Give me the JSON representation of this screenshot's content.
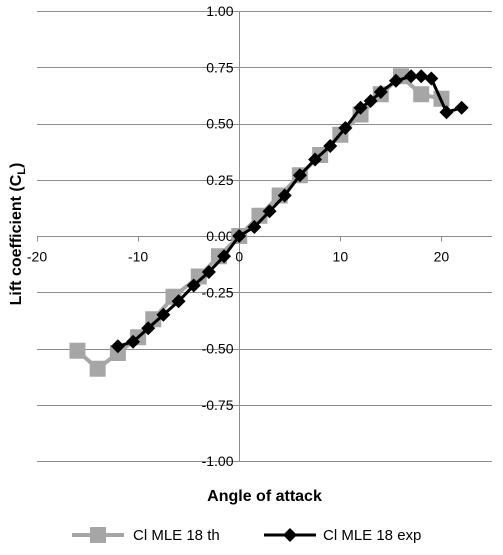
{
  "chart_data": {
    "type": "line",
    "xlabel": "Angle of attack",
    "ylabel": "Lift coefficient (C",
    "ylabel_subscript": "L",
    "ylabel_close": ")",
    "xlim": [
      -20,
      25
    ],
    "ylim": [
      -1.0,
      1.0
    ],
    "x_ticks": [
      -20,
      -10,
      0,
      10,
      20
    ],
    "y_ticks": [
      1.0,
      0.75,
      0.5,
      0.25,
      0.0,
      -0.25,
      -0.5,
      -0.75,
      -1.0
    ],
    "x_tick_labels": [
      "-20",
      "-10",
      "0",
      "10",
      "20"
    ],
    "y_tick_labels": [
      "1.00",
      "0.75",
      "0.50",
      "0.25",
      "0.00",
      "-0.25",
      "-0.50",
      "-0.75",
      "-1.00"
    ],
    "grid": "horizontal",
    "legend_position": "bottom",
    "series": [
      {
        "name": "Cl MLE 18 th",
        "color": "#a6a6a6",
        "marker": "square",
        "x": [
          -16,
          -14,
          -12,
          -10,
          -8.5,
          -6.5,
          -4,
          -2,
          0,
          2,
          4,
          6,
          8,
          10,
          12,
          14,
          16,
          18,
          20
        ],
        "y": [
          -0.51,
          -0.59,
          -0.52,
          -0.45,
          -0.37,
          -0.27,
          -0.18,
          -0.09,
          0.0,
          0.09,
          0.18,
          0.27,
          0.36,
          0.45,
          0.54,
          0.63,
          0.71,
          0.63,
          0.61
        ]
      },
      {
        "name": "Cl MLE 18 exp",
        "color": "#000000",
        "marker": "diamond",
        "x": [
          -12,
          -10.5,
          -9,
          -7.5,
          -6,
          -4.5,
          -3,
          -1.5,
          0,
          1.5,
          3,
          4.5,
          6,
          7.5,
          9,
          10.5,
          12,
          13,
          14,
          15.5,
          17,
          18,
          19,
          20.5,
          22
        ],
        "y": [
          -0.49,
          -0.47,
          -0.41,
          -0.35,
          -0.29,
          -0.22,
          -0.16,
          -0.09,
          0.0,
          0.04,
          0.11,
          0.18,
          0.27,
          0.34,
          0.4,
          0.48,
          0.57,
          0.6,
          0.64,
          0.69,
          0.71,
          0.71,
          0.7,
          0.55,
          0.57
        ]
      }
    ]
  }
}
